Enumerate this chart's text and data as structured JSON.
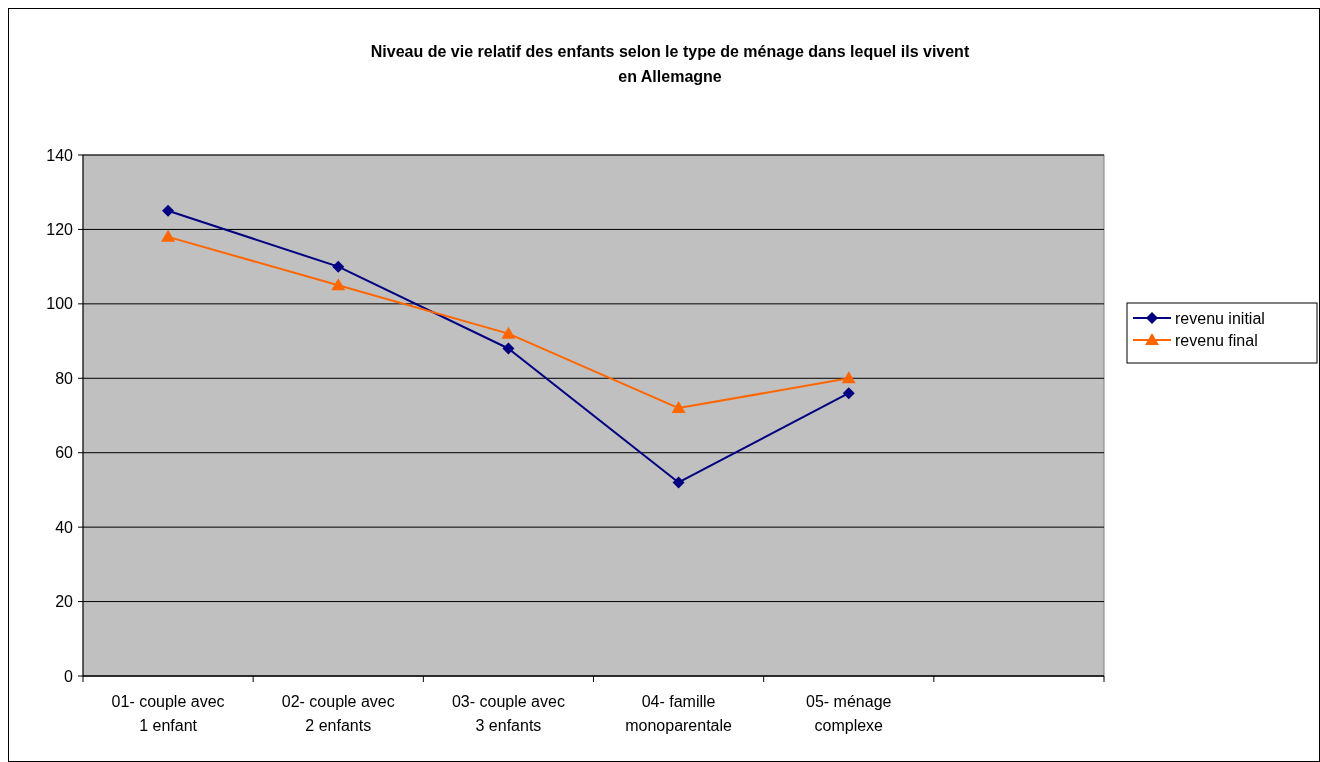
{
  "chart_data": {
    "type": "line",
    "title": "Niveau de vie relatif des enfants selon le type de ménage dans lequel ils vivent en Allemagne",
    "categories": [
      "01- couple avec 1 enfant",
      "02- couple avec 2 enfants",
      "03- couple avec 3 enfants",
      "04- famille monoparentale",
      "05- ménage complexe",
      null
    ],
    "series": [
      {
        "name": "revenu initial",
        "color": "#000080",
        "marker": "diamond",
        "values": [
          125,
          110,
          88,
          52,
          76,
          null
        ]
      },
      {
        "name": "revenu final",
        "color": "#ff6600",
        "marker": "triangle",
        "values": [
          118,
          105,
          92,
          72,
          80,
          null
        ]
      }
    ],
    "ylim": [
      0,
      140
    ],
    "yticks": [
      0,
      20,
      40,
      60,
      80,
      100,
      120,
      140
    ],
    "grid": "y",
    "legend": "right"
  }
}
